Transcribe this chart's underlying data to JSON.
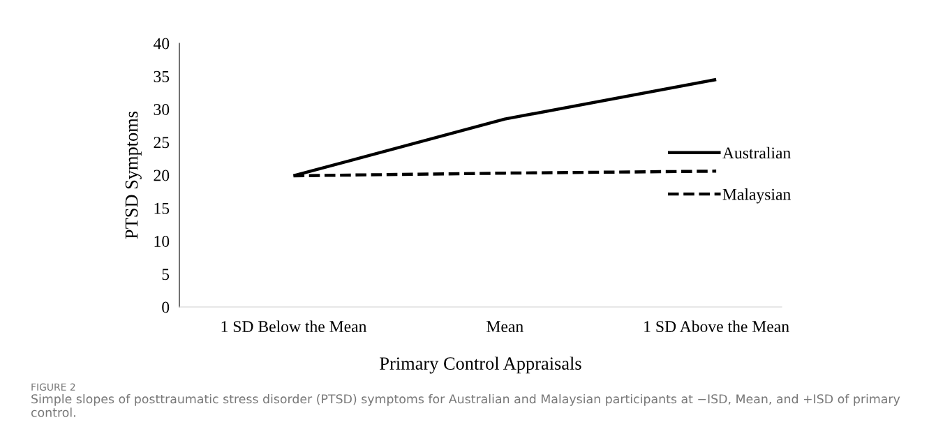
{
  "chart_data": {
    "type": "line",
    "xlabel": "Primary Control Appraisals",
    "ylabel": "PTSD Symptoms",
    "categories": [
      "1 SD Below the Mean",
      "Mean",
      "1 SD Above the Mean"
    ],
    "series": [
      {
        "name": "Australian",
        "color": "#000000",
        "line_style": "solid",
        "values": [
          19.9,
          28.5,
          34.5
        ]
      },
      {
        "name": "Malaysian",
        "color": "#000000",
        "line_style": "dashed",
        "values": [
          19.9,
          20.3,
          20.6
        ]
      }
    ],
    "ylim": [
      0,
      40
    ],
    "yticks": [
      0,
      5,
      10,
      15,
      20,
      25,
      30,
      35,
      40
    ],
    "grid": false,
    "legend": "right",
    "marker": "none",
    "annotations": [
      "FIGURE 2",
      "Simple slopes of posttraumatic stress disorder (PTSD) symptoms for Australian and Malaysian participants at −ISD, Mean, and +ISD of primary control."
    ]
  }
}
